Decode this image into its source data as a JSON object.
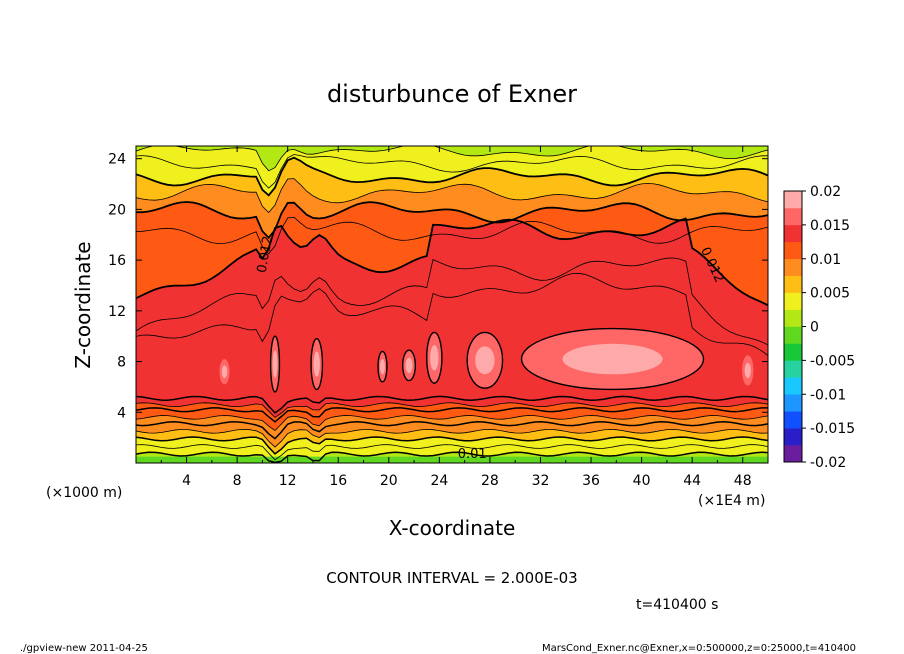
{
  "chart_data": {
    "type": "heatmap",
    "title": "disturbunce of Exner",
    "xlabel": "X-coordinate",
    "ylabel": "Z-coordinate",
    "x_units_label": "(×1000 m)",
    "x_extra_label": "(×1E4 m)",
    "xlim": [
      0,
      50
    ],
    "ylim": [
      0,
      25
    ],
    "x_ticks": [
      4,
      8,
      12,
      16,
      20,
      24,
      28,
      32,
      36,
      40,
      44,
      48
    ],
    "y_ticks": [
      4,
      8,
      12,
      16,
      20,
      24
    ],
    "contour_interval_text": "CONTOUR INTERVAL = 2.000E-03",
    "time_text": "t=410400 s",
    "contour_labels": [
      {
        "text": "0.012",
        "x": 10.5,
        "z": 16.4,
        "angle": -80
      },
      {
        "text": "0.012",
        "x": 45.3,
        "z": 15.5,
        "angle": 65
      },
      {
        "text": "0.01",
        "x": 26.6,
        "z": 0.4,
        "angle": 0
      }
    ],
    "colorbar": {
      "tick_labels": [
        "0.02",
        "0.015",
        "0.01",
        "0.005",
        "0",
        "-0.005",
        "-0.01",
        "-0.015",
        "-0.02"
      ],
      "min": -0.02,
      "max": 0.02,
      "colors": [
        "#6a1e9e",
        "#2a1ec8",
        "#1050ff",
        "#1e96ff",
        "#18c8ff",
        "#28d2a0",
        "#18c838",
        "#60d820",
        "#b4e814",
        "#f0f01e",
        "#ffbe14",
        "#ff8c1e",
        "#ff5a14",
        "#f03232",
        "#ff6666",
        "#ffaaaa"
      ]
    },
    "field_regions": [
      {
        "band": "low",
        "z_range": [
          0,
          4.5
        ],
        "value_range": [
          0.002,
          0.013
        ]
      },
      {
        "band": "core",
        "z_range": [
          5,
          11
        ],
        "value_range": [
          0.014,
          0.017
        ]
      },
      {
        "band": "upper",
        "z_range": [
          14,
          25
        ],
        "value_range": [
          0.002,
          0.012
        ]
      }
    ]
  },
  "footer": {
    "left": "./gpview-new   2011-04-25",
    "right": "MarsCond_Exner.nc@Exner,x=0:500000,z=0:25000,t=410400"
  }
}
